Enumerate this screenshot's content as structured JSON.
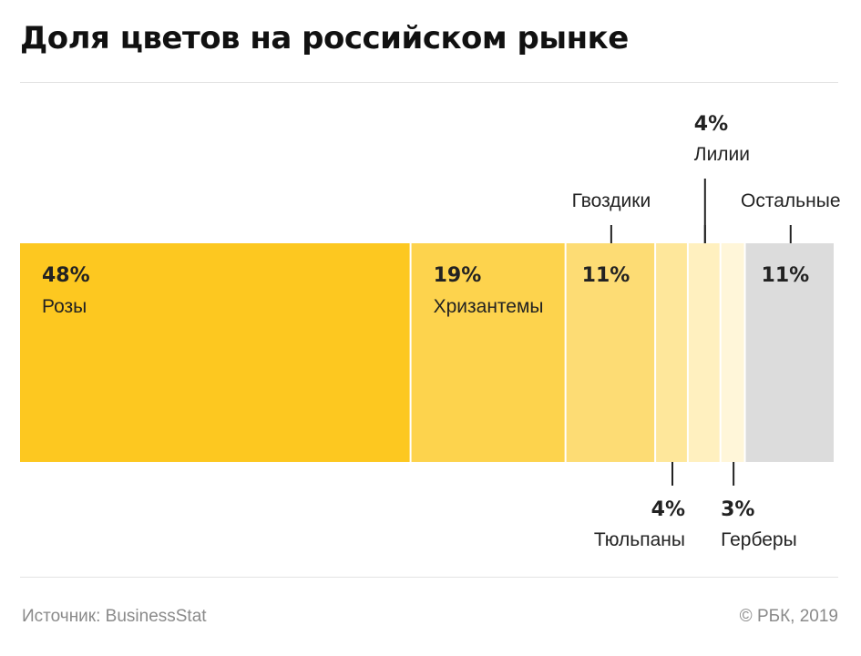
{
  "title": "Доля цветов на российском рынке",
  "source": "Источник: BusinessStat",
  "credit": "© РБК, 2019",
  "chart_data": {
    "type": "bar",
    "orientation": "horizontal-stacked-100",
    "categories": [
      "Розы",
      "Хризантемы",
      "Гвоздики",
      "Тюльпаны",
      "Лилии",
      "Герберы",
      "Остальные"
    ],
    "values": [
      48,
      19,
      11,
      4,
      4,
      3,
      11
    ],
    "value_labels": [
      "48%",
      "19%",
      "11%",
      "4%",
      "4%",
      "3%",
      "11%"
    ],
    "colors": [
      "#fdc820",
      "#fdd34d",
      "#fddc74",
      "#fee79b",
      "#fff0bf",
      "#fff6d9",
      "#dcdcdc"
    ],
    "label_positions": [
      "inside",
      "inside",
      "above",
      "below",
      "above",
      "below",
      "above"
    ],
    "value_positions": [
      "inside",
      "inside",
      "inside",
      "below",
      "above",
      "below",
      "inside"
    ]
  }
}
